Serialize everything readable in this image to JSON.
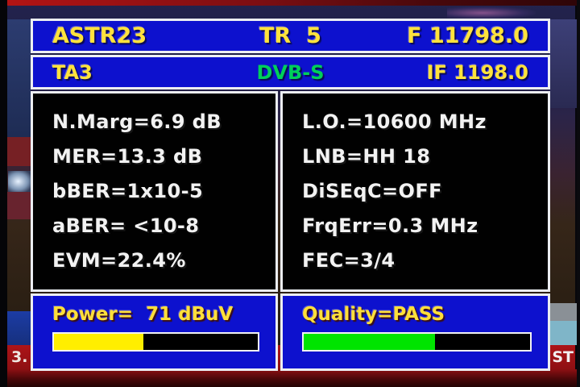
{
  "header": {
    "channel_name": "ASTR23",
    "transponder": "TR  5",
    "frequency": "F 11798.0",
    "provider": "TA3",
    "system": "DVB-S",
    "if_frequency": "IF 1198.0"
  },
  "measurements": {
    "left_rows": [
      "N.Marg=6.9 dB",
      "MER=13.3 dB",
      "bBER=1x10-5",
      "aBER= <10-8",
      "EVM=22.4%"
    ],
    "right_rows": [
      "L.O.=10600 MHz",
      "LNB=HH 18",
      "DiSEqC=OFF",
      "FrqErr=0.3 MHz",
      "FEC=3/4"
    ]
  },
  "power": {
    "label": "Power=  71 dBuV",
    "value_dbuv": 71,
    "bar_percent": 44,
    "bar_color": "#ffee00"
  },
  "quality": {
    "label": "Quality=PASS",
    "status": "PASS",
    "bar_percent": 58,
    "bar_color": "#00e400"
  },
  "background": {
    "ticker_left_text": "3.",
    "ticker_right_text": "ST"
  },
  "colors": {
    "osd_blue": "#0d11ce",
    "border_white": "#eceef2",
    "text_yellow": "#ffe23c",
    "text_green": "#00cf5a",
    "text_white": "#f2f2f2",
    "ticker_red": "#ad1418"
  }
}
